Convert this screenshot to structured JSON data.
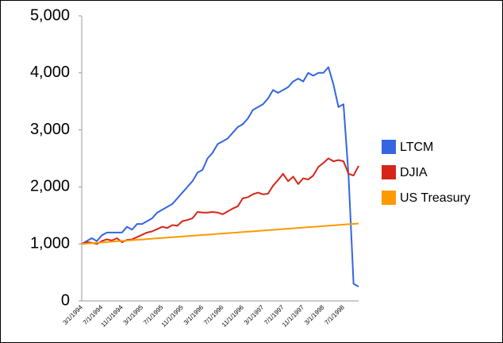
{
  "chart_data": {
    "type": "line",
    "categories": [
      "3/1/1994",
      null,
      null,
      null,
      "7/1/1994",
      null,
      null,
      null,
      "11/1/1994",
      null,
      null,
      null,
      "3/1/1995",
      null,
      null,
      null,
      "7/1/1995",
      null,
      null,
      null,
      "11/1/1995",
      null,
      null,
      null,
      "3/1/1996",
      null,
      null,
      null,
      "7/1/1996",
      null,
      null,
      null,
      "11/1/1996",
      null,
      null,
      null,
      "3/1/1997",
      null,
      null,
      null,
      "7/1/1997",
      null,
      null,
      null,
      "11/1/1997",
      null,
      null,
      null,
      "3/1/1998",
      null,
      null,
      null,
      "7/1/1998",
      null,
      null,
      null
    ],
    "series": [
      {
        "name": "LTCM",
        "color": "#3366e0",
        "values": [
          1000,
          1050,
          1100,
          1050,
          1150,
          1200,
          1200,
          1200,
          1200,
          1300,
          1250,
          1350,
          1350,
          1400,
          1450,
          1550,
          1600,
          1650,
          1700,
          1800,
          1900,
          2000,
          2100,
          2250,
          2300,
          2500,
          2600,
          2750,
          2800,
          2850,
          2950,
          3050,
          3100,
          3200,
          3350,
          3400,
          3450,
          3550,
          3700,
          3650,
          3700,
          3750,
          3850,
          3900,
          3850,
          4000,
          3950,
          4000,
          4000,
          4100,
          3800,
          3400,
          3450,
          2200,
          300,
          250
        ]
      },
      {
        "name": "DJIA",
        "color": "#d62518",
        "values": [
          1000,
          1030,
          1020,
          1000,
          1050,
          1080,
          1060,
          1100,
          1030,
          1070,
          1080,
          1120,
          1160,
          1200,
          1220,
          1260,
          1300,
          1280,
          1330,
          1320,
          1400,
          1420,
          1450,
          1560,
          1550,
          1550,
          1560,
          1550,
          1520,
          1570,
          1620,
          1660,
          1800,
          1820,
          1870,
          1900,
          1870,
          1880,
          2020,
          2120,
          2230,
          2100,
          2180,
          2050,
          2150,
          2130,
          2200,
          2350,
          2420,
          2500,
          2450,
          2470,
          2450,
          2230,
          2200,
          2370
        ]
      },
      {
        "name": "US Treasury",
        "color": "#ff9900",
        "values": [
          1000,
          1007,
          1013,
          1020,
          1026,
          1033,
          1039,
          1046,
          1052,
          1059,
          1065,
          1072,
          1078,
          1085,
          1091,
          1098,
          1104,
          1111,
          1117,
          1124,
          1130,
          1137,
          1143,
          1150,
          1156,
          1163,
          1169,
          1176,
          1182,
          1189,
          1195,
          1202,
          1208,
          1215,
          1221,
          1228,
          1234,
          1241,
          1247,
          1254,
          1260,
          1267,
          1273,
          1280,
          1286,
          1293,
          1299,
          1306,
          1312,
          1319,
          1325,
          1332,
          1338,
          1345,
          1351,
          1358
        ]
      }
    ],
    "ylim": [
      0,
      5000
    ],
    "yticks": [
      0,
      {
        "value": 1000,
        "label": "1,000"
      },
      {
        "value": 2000,
        "label": "2,000"
      },
      {
        "value": 3000,
        "label": "3,000"
      },
      {
        "value": 4000,
        "label": "4,000"
      },
      {
        "value": 5000,
        "label": "5,000"
      }
    ],
    "grid": false,
    "legend": "right"
  }
}
